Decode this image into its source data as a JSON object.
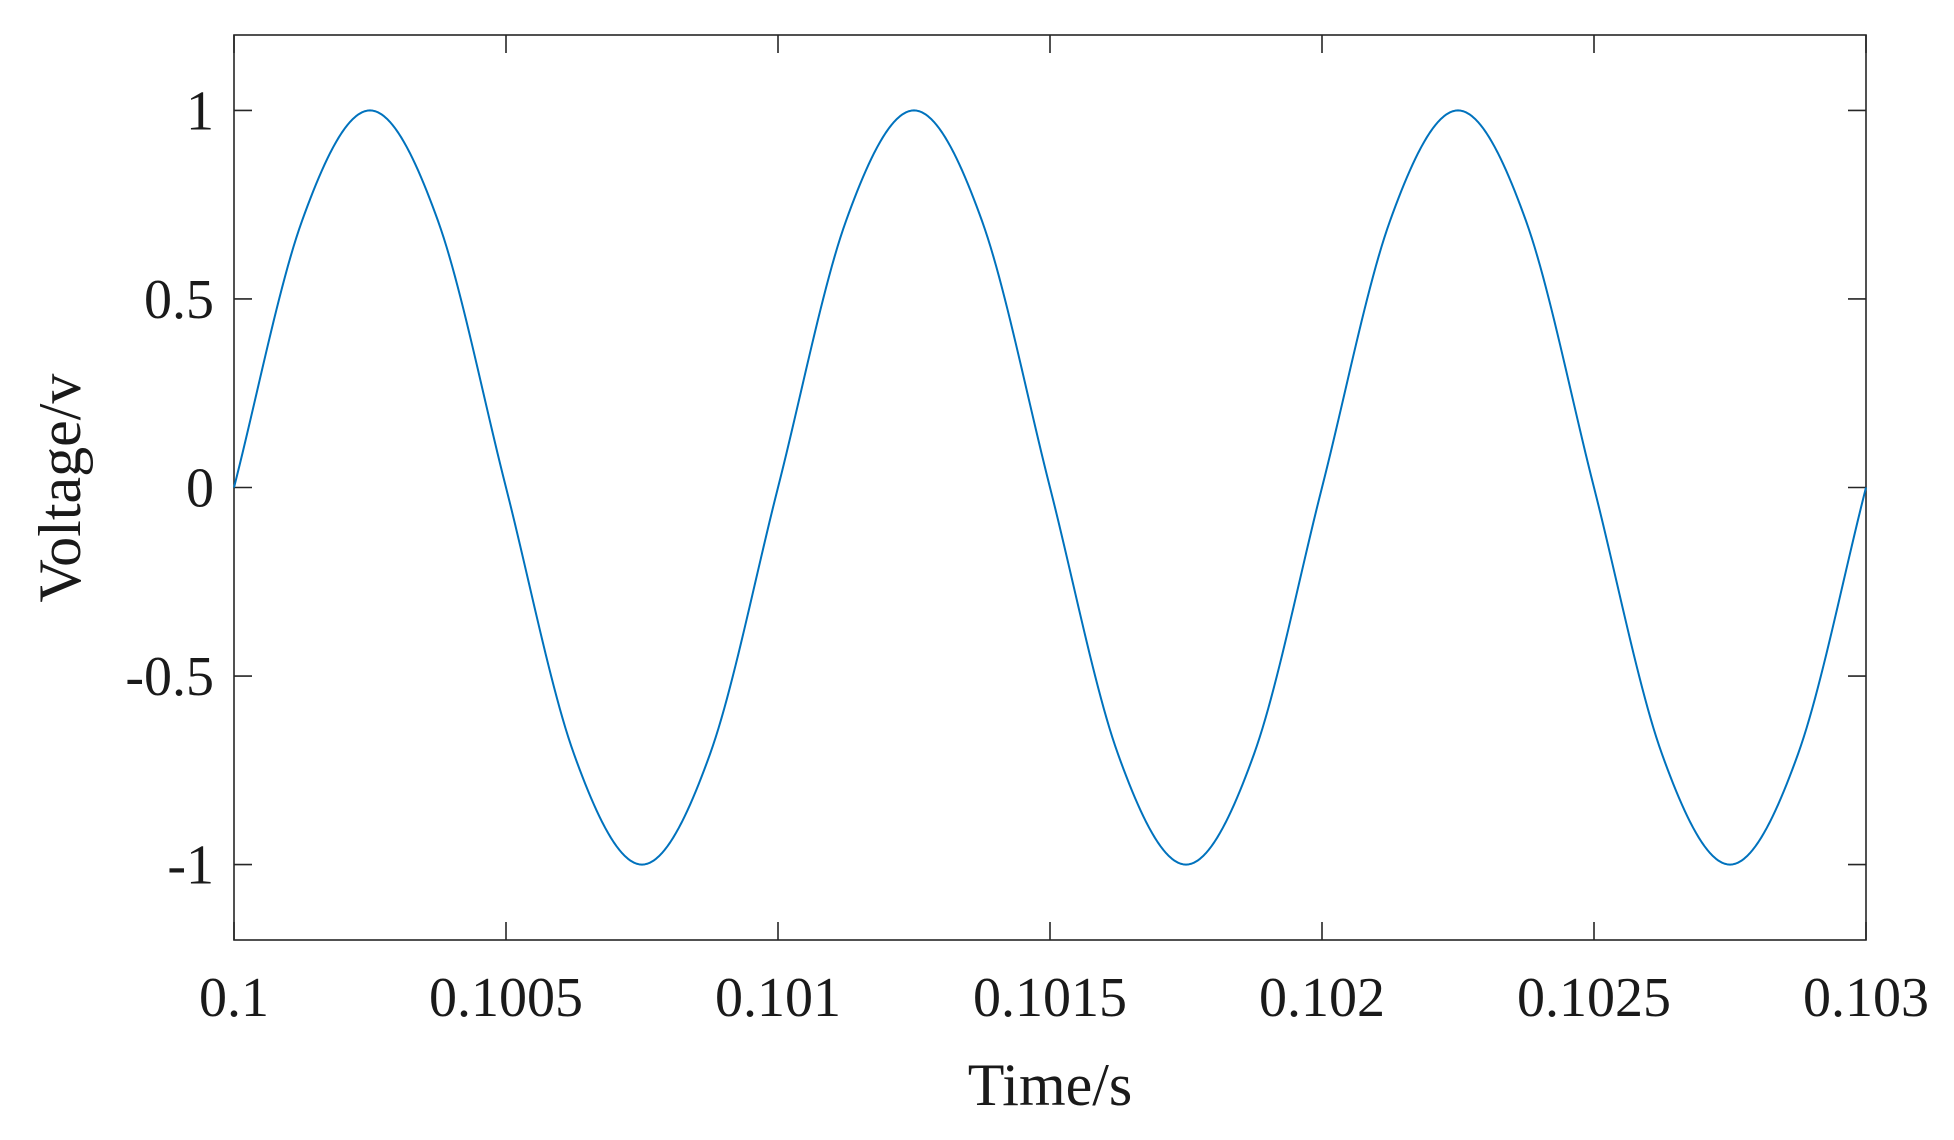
{
  "chart_data": {
    "type": "line",
    "xlabel": "Time/s",
    "ylabel": "Voltage/v",
    "xlim": [
      0.1,
      0.103
    ],
    "ylim": [
      -1.2,
      1.2
    ],
    "x_ticks": [
      0.1,
      0.1005,
      0.101,
      0.1015,
      0.102,
      0.1025,
      0.103
    ],
    "x_tick_labels": [
      "0.1",
      "0.1005",
      "0.101",
      "0.1015",
      "0.102",
      "0.1025",
      "0.103"
    ],
    "y_ticks": [
      1,
      0.5,
      0,
      -0.5,
      -1
    ],
    "y_tick_labels": [
      "1",
      "0.5",
      "0",
      "-0.5",
      "-1"
    ],
    "grid": false,
    "series": [
      {
        "color": "#0072BD",
        "x": [
          0.1,
          0.100125,
          0.10025,
          0.100375,
          0.1005,
          0.100625,
          0.10075,
          0.100875,
          0.101,
          0.101125,
          0.10125,
          0.101375,
          0.1015,
          0.101625,
          0.10175,
          0.101875,
          0.102,
          0.102125,
          0.10225,
          0.102375,
          0.1025,
          0.102625,
          0.10275,
          0.102875,
          0.103
        ],
        "y": [
          0,
          0.707,
          1,
          0.707,
          0,
          -0.707,
          -1,
          -0.707,
          0,
          0.707,
          1,
          0.707,
          0,
          -0.707,
          -1,
          -0.707,
          0,
          0.707,
          1,
          0.707,
          0,
          -0.707,
          -1,
          -0.707,
          0
        ]
      }
    ]
  }
}
